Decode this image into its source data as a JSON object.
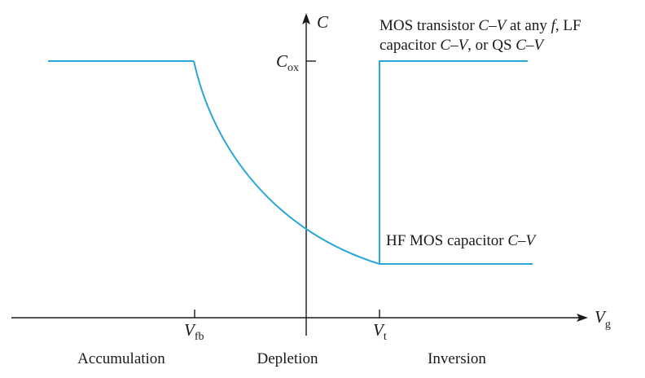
{
  "colors": {
    "curve": "#2aa7d9",
    "axis": "#1a1a1a"
  },
  "axes": {
    "y_label": "C",
    "x_label_main": "V",
    "x_label_sub": "g"
  },
  "ticks": {
    "cox_main": "C",
    "cox_sub": "ox",
    "vfb_main": "V",
    "vfb_sub": "fb",
    "vt_main": "V",
    "vt_sub": "t"
  },
  "annotations": {
    "lf_line1_a": "MOS transistor ",
    "lf_line1_b": "C",
    "lf_line1_c": "–",
    "lf_line1_d": "V",
    "lf_line1_e": " at any ",
    "lf_line1_f": "f",
    "lf_line1_g": ", LF",
    "lf_line2_a": "capacitor ",
    "lf_line2_b": "C",
    "lf_line2_c": "–",
    "lf_line2_d": "V",
    "lf_line2_e": ", or QS ",
    "lf_line2_f": "C",
    "lf_line2_g": "–",
    "lf_line2_h": "V",
    "hf_a": "HF MOS capacitor ",
    "hf_b": "C",
    "hf_c": "–",
    "hf_d": "V"
  },
  "regions": {
    "accumulation": "Accumulation",
    "depletion": "Depletion",
    "inversion": "Inversion"
  }
}
